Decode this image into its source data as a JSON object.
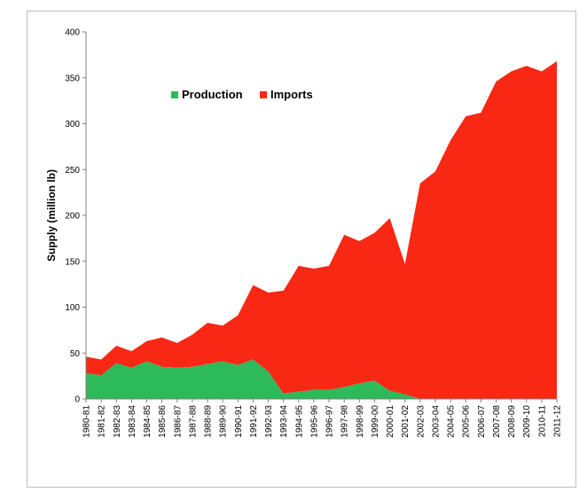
{
  "chart_data": {
    "type": "area",
    "stacked": true,
    "title": "",
    "xlabel": "",
    "ylabel": "Supply (million lb)",
    "ylim": [
      0,
      400
    ],
    "yticks": [
      0,
      50,
      100,
      150,
      200,
      250,
      300,
      350,
      400
    ],
    "grid": false,
    "legend_position": "top-left",
    "categories": [
      "1980-81",
      "1981-82",
      "1982-83",
      "1983-84",
      "1984-85",
      "1985-86",
      "1986-87",
      "1987-88",
      "1988-89",
      "1989-90",
      "1990-91",
      "1991-92",
      "1992-93",
      "1993-94",
      "1994-95",
      "1995-96",
      "1996-97",
      "1997-98",
      "1998-99",
      "1999-00",
      "2000-01",
      "2001-02",
      "2002-03",
      "2003-04",
      "2004-05",
      "2005-06",
      "2006-07",
      "2007-08",
      "2008-09",
      "2009-10",
      "2010-11",
      "2011-12"
    ],
    "series": [
      {
        "name": "Production",
        "color": "#2dba5a",
        "values": [
          28,
          26,
          39,
          34,
          41,
          35,
          34,
          35,
          38,
          41,
          37,
          43,
          30,
          6,
          8,
          10,
          10,
          13,
          17,
          20,
          9,
          5,
          0,
          0,
          0,
          0,
          0,
          0,
          0,
          0,
          0,
          0
        ]
      },
      {
        "name": "Imports",
        "color": "#f82814",
        "values": [
          18,
          17,
          19,
          18,
          22,
          32,
          27,
          35,
          45,
          39,
          54,
          81,
          86,
          112,
          137,
          132,
          135,
          166,
          155,
          161,
          188,
          142,
          235,
          248,
          282,
          308,
          312,
          346,
          357,
          363,
          357,
          368
        ]
      }
    ]
  }
}
